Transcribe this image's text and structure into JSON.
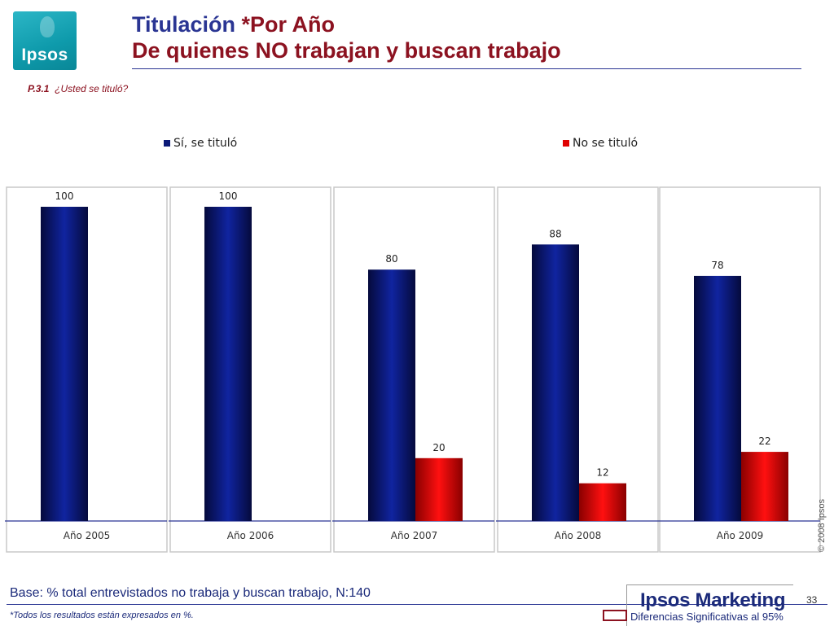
{
  "logo": {
    "text": "Ipsos"
  },
  "header": {
    "title_line1_part1": "Titulación ",
    "title_line1_part2": "*Por Año",
    "title_line2": "De quienes NO trabajan y buscan trabajo",
    "question_code": "P.3.1",
    "question_text": "¿Usted se tituló?"
  },
  "colors": {
    "title_blue": "#2a3593",
    "title_red": "#8c1220",
    "series_blue": "#0b1a78",
    "series_red": "#e00000"
  },
  "chart_data": {
    "type": "bar",
    "categories": [
      "Año 2005",
      "Año 2006",
      "Año 2007",
      "Año 2008",
      "Año 2009"
    ],
    "series": [
      {
        "name": "Sí, se tituló",
        "values": [
          100,
          100,
          80,
          88,
          78
        ]
      },
      {
        "name": "No se tituló",
        "values": [
          null,
          null,
          20,
          12,
          22
        ]
      }
    ],
    "ylim": [
      0,
      100
    ],
    "grid": false,
    "legend_position": "top",
    "data_labels": true
  },
  "side": {
    "copyright": "© 2008 Ipsos"
  },
  "footer": {
    "base": "Base: % total entrevistados no trabaja y buscan trabajo, N:140",
    "note": "*Todos los resultados están expresados en %.",
    "brand": "Ipsos Marketing",
    "page_number": "33",
    "significance_label": "Diferencias Significativas al 95%"
  }
}
